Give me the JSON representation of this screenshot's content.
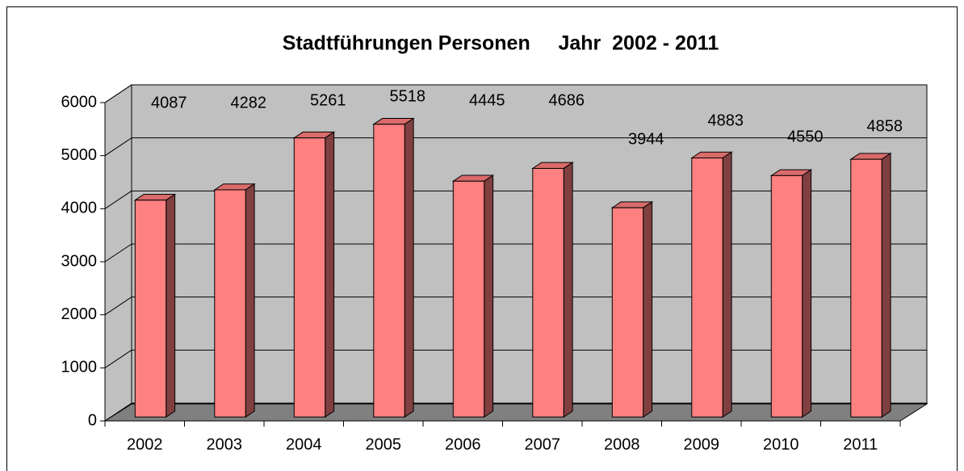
{
  "chart_data": {
    "type": "bar",
    "title": "Stadtführungen Personen     Jahr  2002 - 2011",
    "categories": [
      "2002",
      "2003",
      "2004",
      "2005",
      "2006",
      "2007",
      "2008",
      "2009",
      "2010",
      "2011"
    ],
    "values": [
      4087,
      4282,
      5261,
      5518,
      4445,
      4686,
      3944,
      4883,
      4550,
      4858
    ],
    "color": "#ff8080",
    "ylim": [
      0,
      6000
    ],
    "yticks": [
      0,
      1000,
      2000,
      3000,
      4000,
      5000,
      6000
    ],
    "grid": true
  }
}
